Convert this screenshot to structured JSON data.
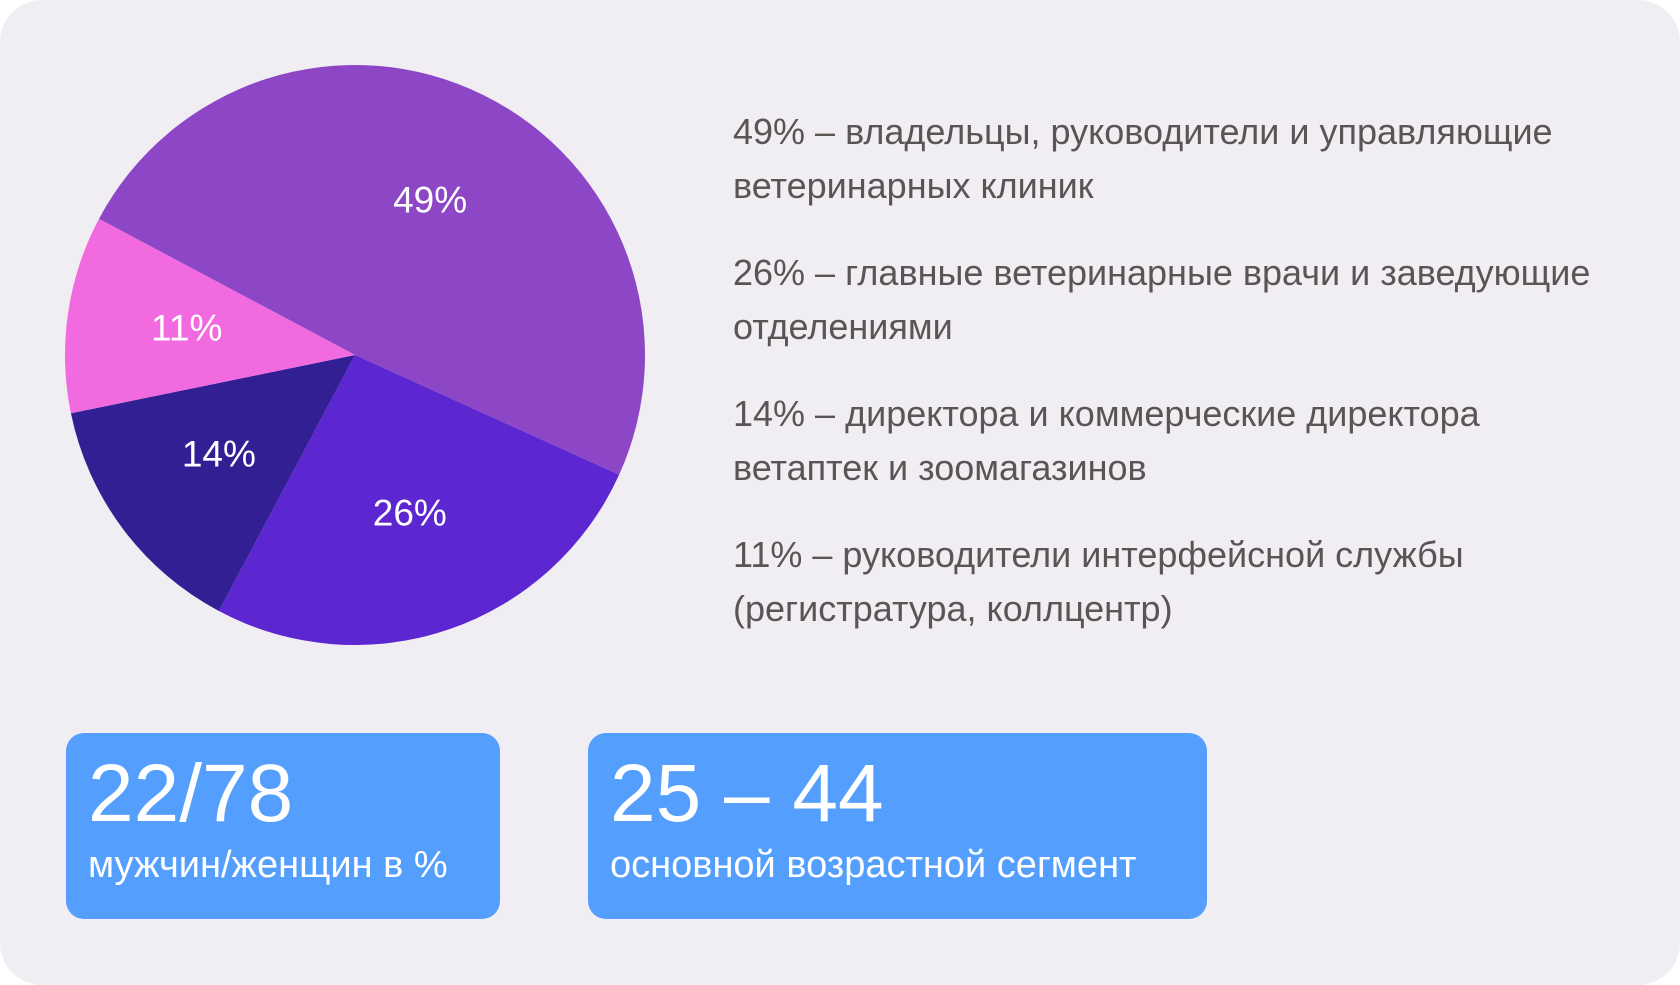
{
  "chart_data": {
    "type": "pie",
    "slices": [
      {
        "label": "49%",
        "value": 49,
        "color": "#8c46c6"
      },
      {
        "label": "26%",
        "value": 26,
        "color": "#5c26d0"
      },
      {
        "label": "14%",
        "value": 14,
        "color": "#331f94"
      },
      {
        "label": "11%",
        "value": 11,
        "color": "#f26ae0"
      }
    ],
    "legend": [
      "49% – владельцы, руководители и управляющие ветеринарных клиник",
      "26% – главные ветеринарные врачи и заведующие отделениями",
      "14% – директора и коммерческие директора ветаптек и зоомагазинов",
      "11% – руководители интерфейсной службы (регистратура, коллцентр)"
    ]
  },
  "stats": [
    {
      "value": "22/78",
      "caption": "мужчин/женщин в %"
    },
    {
      "value": "25 – 44",
      "caption": "основной возрастной сегмент"
    }
  ],
  "colors": {
    "background": "#f0eef2",
    "legend_text": "#5a5555",
    "stat_card": "#549ffe"
  }
}
